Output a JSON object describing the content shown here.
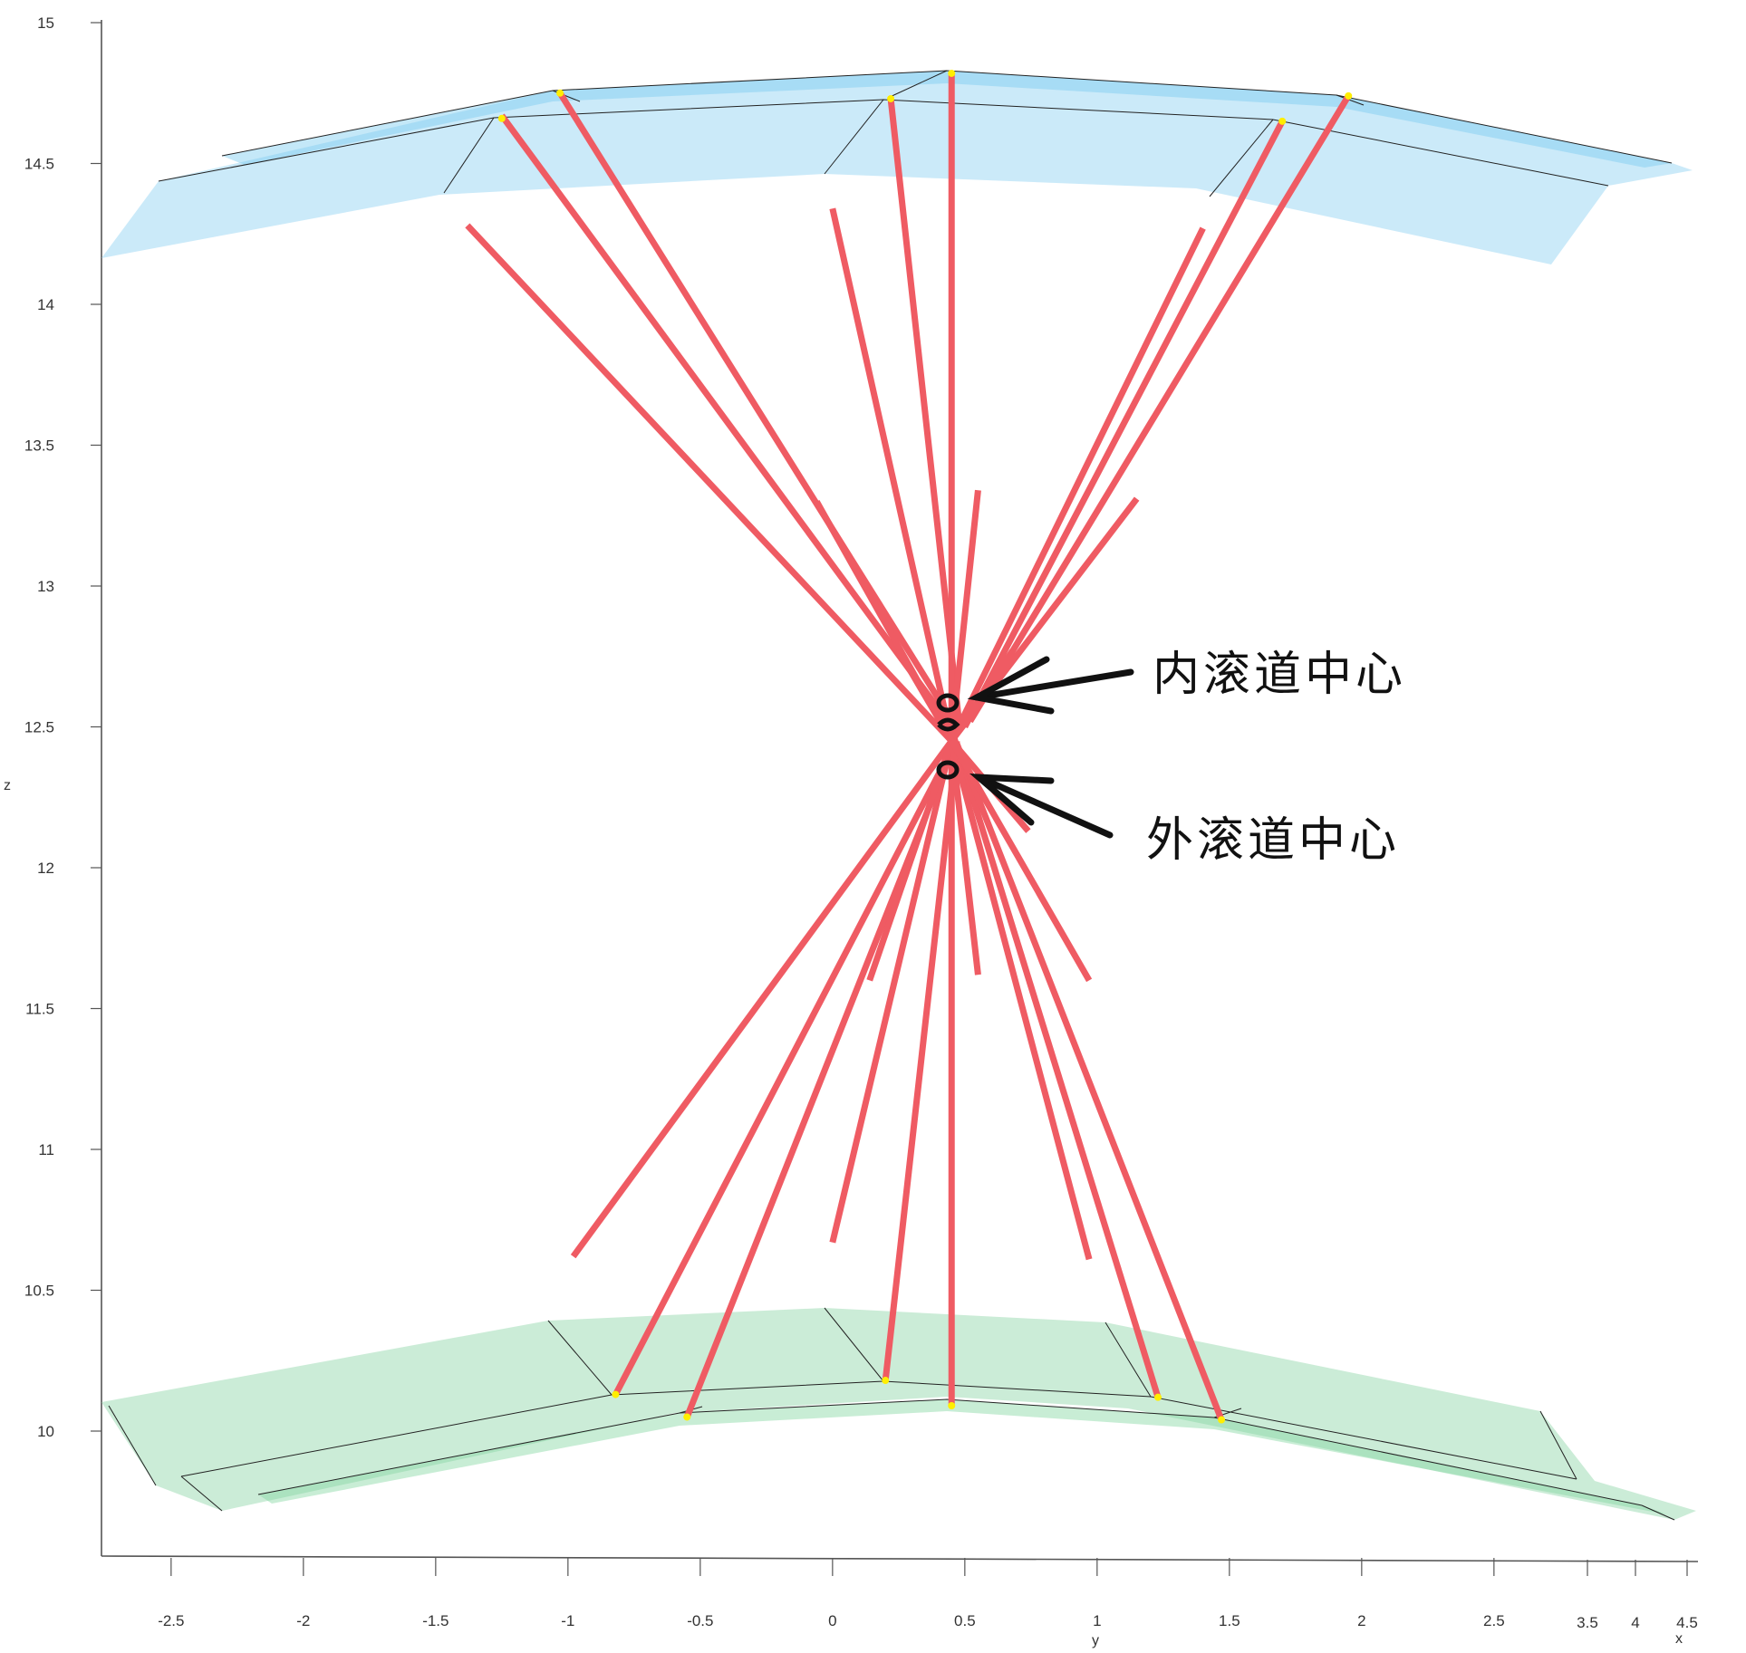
{
  "chart_data": {
    "type": "3d-line-surface",
    "title": "",
    "xlabel": "x",
    "ylabel": "y",
    "zlabel": "z",
    "zlim": [
      9.5,
      15
    ],
    "z_ticks": [
      "15",
      "14.5",
      "14",
      "13.5",
      "13",
      "12.5",
      "12",
      "11.5",
      "11",
      "10.5",
      "10"
    ],
    "z_tick_values": [
      15,
      14.5,
      14,
      13.5,
      13,
      12.5,
      12,
      11.5,
      11,
      10.5,
      10
    ],
    "y_ticks": [
      "-2.5",
      "-2",
      "-1.5",
      "-1",
      "-0.5",
      "0",
      "0.5",
      "1",
      "1.5",
      "2",
      "2.5"
    ],
    "y_tick_values": [
      -2.5,
      -2,
      -1.5,
      -1,
      -0.5,
      0,
      0.5,
      1,
      1.5,
      2,
      2.5
    ],
    "x_ticks": [
      "3.5",
      "4",
      "4.5"
    ],
    "grid": false,
    "colors": {
      "outer_race_surface": "#a8dcf5",
      "inner_race_surface": "#a9e0bc",
      "lines": "#ef5b63",
      "contact_points": "#ffee00",
      "edges": "#222222",
      "annotation": "#111111"
    },
    "focus_point": {
      "y": 0.5,
      "z": 12.45
    },
    "annotations": [
      {
        "label": "内滚道中心",
        "points_to_z": 12.55
      },
      {
        "label": "外滚道中心",
        "points_to_z": 12.35
      }
    ],
    "contact_lines": [
      {
        "y1": -1.25,
        "z1": 14.67,
        "y2": 0.45,
        "z2": 12.5
      },
      {
        "y1": -1.03,
        "z1": 14.75,
        "y2": 0.48,
        "z2": 12.48
      },
      {
        "y1": 0.22,
        "z1": 14.73,
        "y2": 0.48,
        "z2": 12.5
      },
      {
        "y1": 0.45,
        "z1": 14.82,
        "y2": 0.45,
        "z2": 12.5
      },
      {
        "y1": 1.7,
        "z1": 14.65,
        "y2": 0.5,
        "z2": 12.5
      },
      {
        "y1": 1.95,
        "z1": 14.74,
        "y2": 0.52,
        "z2": 12.52
      },
      {
        "y1": -0.82,
        "z1": 10.13,
        "y2": 0.45,
        "z2": 12.42
      },
      {
        "y1": -0.55,
        "z1": 10.05,
        "y2": 0.46,
        "z2": 12.44
      },
      {
        "y1": 0.2,
        "z1": 10.18,
        "y2": 0.47,
        "z2": 12.45
      },
      {
        "y1": 0.45,
        "z1": 10.09,
        "y2": 0.45,
        "z2": 12.45
      },
      {
        "y1": 1.23,
        "z1": 10.12,
        "y2": 0.46,
        "z2": 12.46
      },
      {
        "y1": 1.47,
        "z1": 10.04,
        "y2": 0.47,
        "z2": 12.44
      },
      {
        "y1": -1.38,
        "z1": 14.28,
        "y2": 0.45,
        "z2": 12.45
      },
      {
        "y1": 0.0,
        "z1": 14.34,
        "y2": 0.45,
        "z2": 12.45
      },
      {
        "y1": 1.4,
        "z1": 14.27,
        "y2": 0.45,
        "z2": 12.45
      },
      {
        "y1": -0.06,
        "z1": 13.3,
        "y2": 0.45,
        "z2": 12.45
      },
      {
        "y1": 0.55,
        "z1": 13.34,
        "y2": 0.45,
        "z2": 12.45
      },
      {
        "y1": 1.15,
        "z1": 13.31,
        "y2": 0.45,
        "z2": 12.45
      },
      {
        "y1": 0.68,
        "z1": 12.77,
        "y2": 0.45,
        "z2": 12.45
      },
      {
        "y1": 0.25,
        "z1": 12.77,
        "y2": 0.45,
        "z2": 12.45
      },
      {
        "y1": 0.45,
        "z1": 12.45,
        "y2": -0.98,
        "z2": 10.62
      },
      {
        "y1": 0.45,
        "z1": 12.45,
        "y2": 0.0,
        "z2": 10.67
      },
      {
        "y1": 0.45,
        "z1": 12.45,
        "y2": 0.97,
        "z2": 10.61
      },
      {
        "y1": 0.45,
        "z1": 12.45,
        "y2": 0.14,
        "z2": 11.6
      },
      {
        "y1": 0.45,
        "z1": 12.45,
        "y2": 0.55,
        "z2": 11.62
      },
      {
        "y1": 0.45,
        "z1": 12.45,
        "y2": 0.97,
        "z2": 11.6
      },
      {
        "y1": 0.45,
        "z1": 12.45,
        "y2": 0.74,
        "z2": 12.13
      }
    ],
    "contact_points": [
      {
        "y": -1.25,
        "z": 14.66
      },
      {
        "y": -1.03,
        "z": 14.75
      },
      {
        "y": 0.22,
        "z": 14.73
      },
      {
        "y": 0.45,
        "z": 14.82
      },
      {
        "y": 1.7,
        "z": 14.65
      },
      {
        "y": 1.95,
        "z": 14.74
      },
      {
        "y": -0.82,
        "z": 10.13
      },
      {
        "y": -0.55,
        "z": 10.05
      },
      {
        "y": 0.2,
        "z": 10.18
      },
      {
        "y": 0.45,
        "z": 10.09
      },
      {
        "y": 1.23,
        "z": 10.12
      },
      {
        "y": 1.47,
        "z": 10.04
      }
    ]
  }
}
